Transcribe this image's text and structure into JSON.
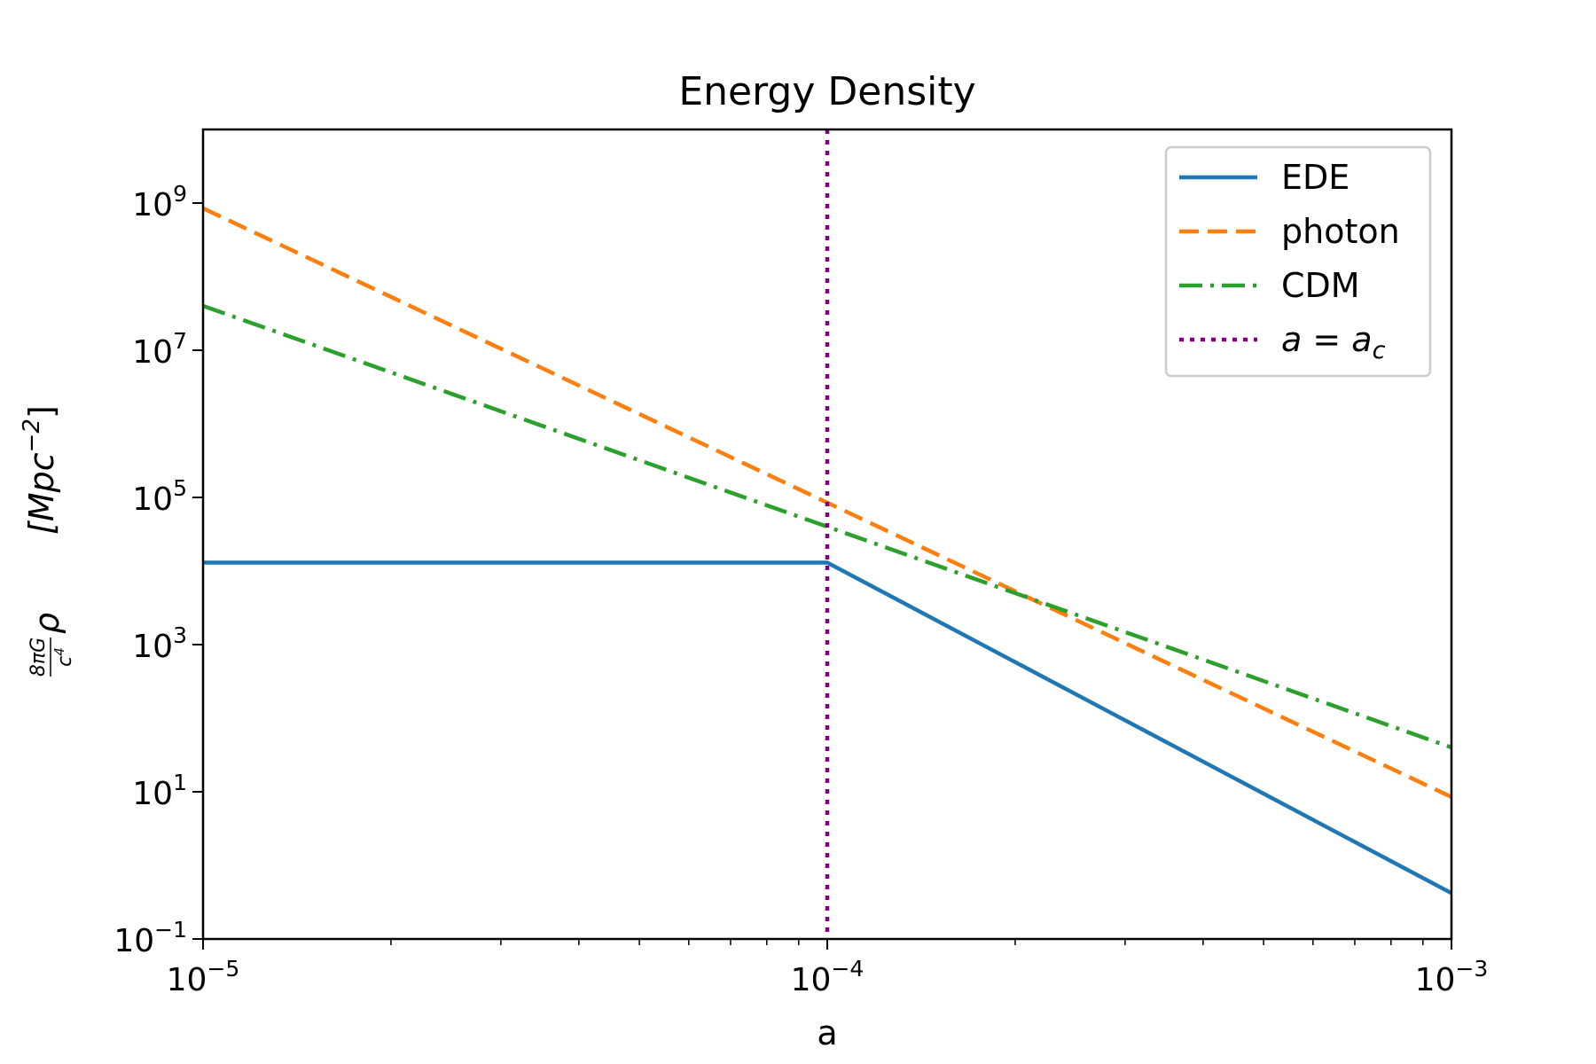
{
  "chart_data": {
    "type": "line",
    "title": "Energy Density",
    "xlabel": "a",
    "ylabel": {
      "prefactor_numerator": "8πG",
      "prefactor_denominator": "c",
      "denominator_power": "4",
      "symbol": "ρ",
      "units": "[Mpc",
      "units_power": "−2",
      "units_close": "]"
    },
    "xscale": "log",
    "yscale": "log",
    "xlim": [
      1e-05,
      0.001
    ],
    "ylim": [
      0.1,
      10000000000
    ],
    "x_ticks": [
      {
        "base": "10",
        "exp": "−5",
        "value": 1e-05
      },
      {
        "base": "10",
        "exp": "−4",
        "value": 0.0001
      },
      {
        "base": "10",
        "exp": "−3",
        "value": 0.001
      }
    ],
    "y_ticks": [
      {
        "base": "10",
        "exp": "−1",
        "value": 0.1
      },
      {
        "base": "10",
        "exp": "1",
        "value": 10
      },
      {
        "base": "10",
        "exp": "3",
        "value": 1000
      },
      {
        "base": "10",
        "exp": "5",
        "value": 100000
      },
      {
        "base": "10",
        "exp": "7",
        "value": 10000000
      },
      {
        "base": "10",
        "exp": "9",
        "value": 1000000000
      }
    ],
    "series": [
      {
        "name": "EDE",
        "color": "#1f77b4",
        "style": "solid",
        "x": [
          1e-05,
          0.0001,
          0.001
        ],
        "y": [
          13000,
          13000,
          0.42
        ]
      },
      {
        "name": "photon",
        "color": "#ff7f0e",
        "style": "dashed",
        "x": [
          1e-05,
          0.0001,
          0.001
        ],
        "y": [
          850000000,
          85000,
          8.5
        ]
      },
      {
        "name": "CDM",
        "color": "#2ca02c",
        "style": "dashdot",
        "x": [
          1e-05,
          0.0001,
          0.001
        ],
        "y": [
          40000000,
          40000,
          40
        ]
      }
    ],
    "vlines": [
      {
        "name": "a = a_c",
        "label_main": "a = a",
        "label_sub": "c",
        "x": 0.0001,
        "color": "#800080",
        "style": "dotted"
      }
    ],
    "legend_position": "top-right"
  }
}
